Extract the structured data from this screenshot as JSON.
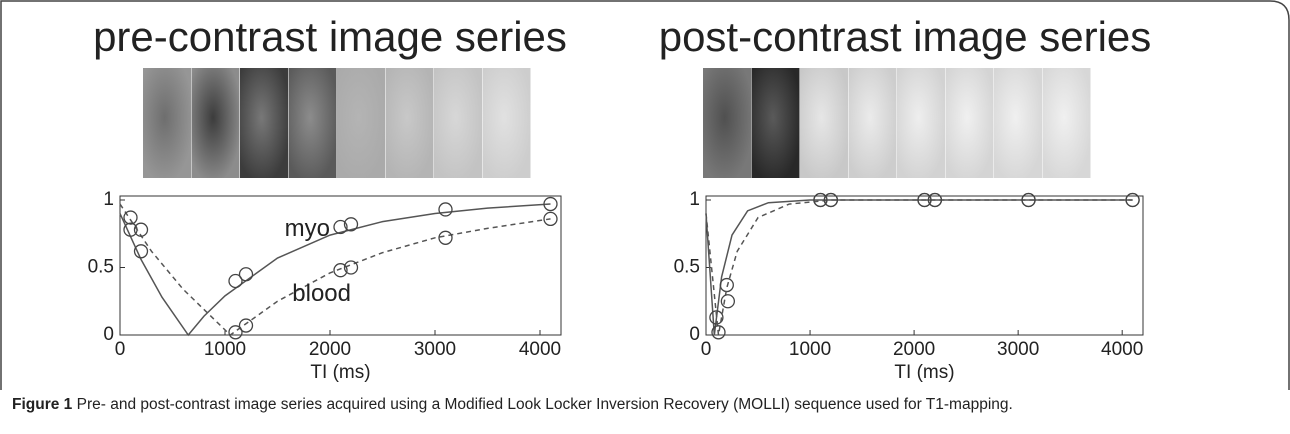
{
  "chart_data": [
    {
      "type": "line",
      "title": "pre-contrast image series",
      "xlabel": "TI (ms)",
      "xlim": [
        0,
        4200
      ],
      "ylim": [
        0,
        1
      ],
      "xticks": [
        0,
        1000,
        2000,
        3000,
        4000
      ],
      "yticks": [
        0,
        0.5,
        1
      ],
      "series": [
        {
          "name": "myo",
          "color": "#555555",
          "dash": false,
          "x": [
            100,
            200,
            1100,
            1200,
            2100,
            2200,
            3100,
            4100
          ],
          "values": [
            0.78,
            0.62,
            0.4,
            0.45,
            0.8,
            0.82,
            0.93,
            0.97
          ],
          "fit_x": [
            0,
            200,
            400,
            650,
            800,
            1000,
            1500,
            2000,
            2500,
            3000,
            3500,
            4100
          ],
          "fit_values": [
            0.9,
            0.56,
            0.28,
            0,
            0.14,
            0.29,
            0.57,
            0.74,
            0.84,
            0.9,
            0.94,
            0.97
          ]
        },
        {
          "name": "blood",
          "color": "#555555",
          "dash": true,
          "x": [
            100,
            200,
            1100,
            1200,
            2100,
            2200,
            3100,
            4100
          ],
          "values": [
            0.87,
            0.78,
            0.02,
            0.07,
            0.48,
            0.5,
            0.72,
            0.86
          ],
          "fit_x": [
            0,
            300,
            600,
            1050,
            1500,
            2000,
            2500,
            3000,
            3500,
            4100
          ],
          "fit_values": [
            0.97,
            0.62,
            0.34,
            0,
            0.25,
            0.46,
            0.61,
            0.72,
            0.79,
            0.86
          ]
        }
      ]
    },
    {
      "type": "line",
      "title": "post-contrast image series",
      "xlabel": "TI (ms)",
      "xlim": [
        0,
        4200
      ],
      "ylim": [
        0,
        1
      ],
      "xticks": [
        0,
        1000,
        2000,
        3000,
        4000
      ],
      "yticks": [
        0,
        0.5,
        1
      ],
      "series": [
        {
          "color": "#555555",
          "dash": false,
          "x": [
            100,
            200,
            1100,
            1200,
            2100,
            2200,
            3100,
            4100
          ],
          "values": [
            0.13,
            0.37,
            1,
            1,
            1,
            1,
            1,
            1
          ],
          "fit_x": [
            0,
            80,
            150,
            250,
            400,
            600,
            1000,
            4100
          ],
          "fit_values": [
            0.9,
            0,
            0.43,
            0.74,
            0.92,
            0.98,
            1,
            1
          ]
        },
        {
          "color": "#555555",
          "dash": true,
          "x": [
            120,
            210,
            1100,
            1200,
            2100,
            2200,
            3100,
            4100
          ],
          "values": [
            0.02,
            0.25,
            1,
            1,
            1,
            1,
            1,
            1
          ],
          "fit_x": [
            0,
            120,
            200,
            300,
            500,
            800,
            1200,
            4100
          ],
          "fit_values": [
            0.9,
            0,
            0.35,
            0.62,
            0.87,
            0.97,
            1,
            1
          ]
        }
      ]
    }
  ],
  "figure": {
    "label": "Figure 1",
    "caption": "Pre- and post-contrast image series acquired using a Modified Look Locker Inversion Recovery (MOLLI) sequence used for T1-mapping."
  }
}
